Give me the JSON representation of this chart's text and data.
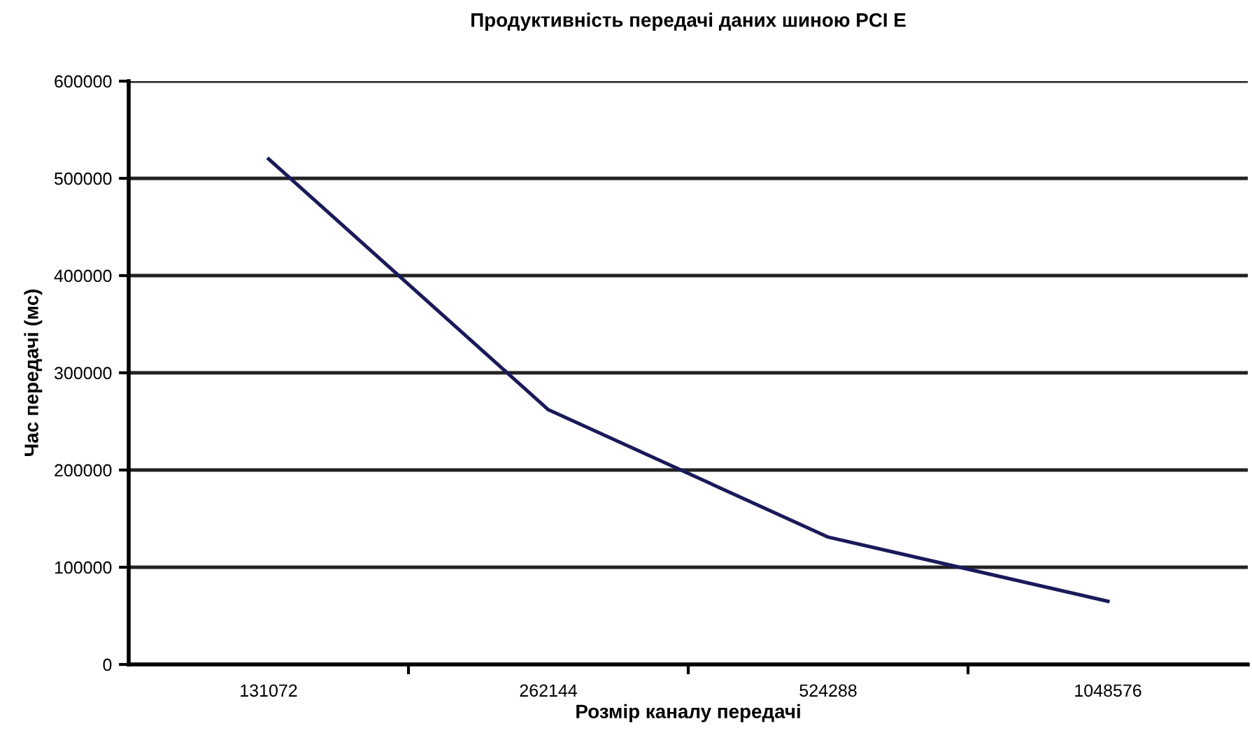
{
  "chart_data": {
    "type": "line",
    "title": "Продуктивність передачі даних шиною PCI E",
    "xlabel": "Розмір каналу передачі",
    "ylabel": "Час передачі (мс)",
    "categories": [
      "131072",
      "262144",
      "524288",
      "1048576"
    ],
    "series": [
      {
        "color": "#1a1a5a",
        "values": [
          520000,
          262000,
          131000,
          65000
        ]
      }
    ],
    "ylim": [
      0,
      600000
    ],
    "yticks": [
      0,
      100000,
      200000,
      300000,
      400000,
      500000,
      600000
    ],
    "grid": "y",
    "marker": "none",
    "line_style": "solid"
  }
}
